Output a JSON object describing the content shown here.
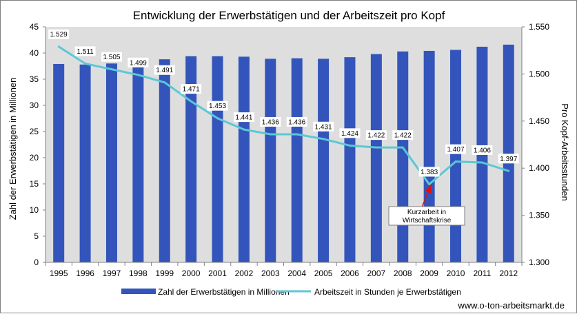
{
  "chart_data": {
    "type": "bar",
    "title": "Entwicklung der Erwerbstätigen und der Arbeitszeit pro Kopf",
    "categories": [
      "1995",
      "1996",
      "1997",
      "1998",
      "1999",
      "2000",
      "2001",
      "2002",
      "2003",
      "2004",
      "2005",
      "2006",
      "2007",
      "2008",
      "2009",
      "2010",
      "2011",
      "2012"
    ],
    "series": [
      {
        "name": "Zahl der Erwerbstätigen in Millionen",
        "type": "bar",
        "axis": "left",
        "color": "#3355bb",
        "values": [
          37.9,
          37.8,
          38.0,
          38.4,
          38.8,
          39.4,
          39.4,
          39.3,
          38.9,
          39.0,
          38.9,
          39.2,
          39.8,
          40.3,
          40.4,
          40.6,
          41.2,
          41.6
        ]
      },
      {
        "name": "Arbeitszeit in Stunden je Erwerbstätigen",
        "type": "line",
        "axis": "right",
        "color": "#5bc8d4",
        "values": [
          1529,
          1511,
          1505,
          1499,
          1491,
          1471,
          1453,
          1441,
          1436,
          1436,
          1431,
          1424,
          1422,
          1422,
          1383,
          1407,
          1406,
          1397
        ],
        "labels": [
          "1.529",
          "1.511",
          "1.505",
          "1.499",
          "1.491",
          "1.471",
          "1.453",
          "1.441",
          "1.436",
          "1.436",
          "1.431",
          "1.424",
          "1.422",
          "1.422",
          "1.383",
          "1.407",
          "1.406",
          "1.397"
        ]
      }
    ],
    "ylabel": "Zahl der Erwerbstätigen in Millionen",
    "y2label": "Pro Kopf-Arbeitsstunden",
    "ylim": [
      0,
      45
    ],
    "y2lim": [
      1300,
      1550
    ],
    "yticks": [
      "0",
      "5",
      "10",
      "15",
      "20",
      "25",
      "30",
      "35",
      "40",
      "45"
    ],
    "y2ticks": [
      "1.300",
      "1.350",
      "1.400",
      "1.450",
      "1.500",
      "1.550"
    ],
    "grid": false,
    "legend_position": "bottom",
    "annotation": {
      "lines": [
        "Kurzarbeit in",
        "Wirtschaftskrise"
      ],
      "category": "2009",
      "arrow_color": "#e01010"
    },
    "source": "www.o-ton-arbeitsmarkt.de"
  }
}
